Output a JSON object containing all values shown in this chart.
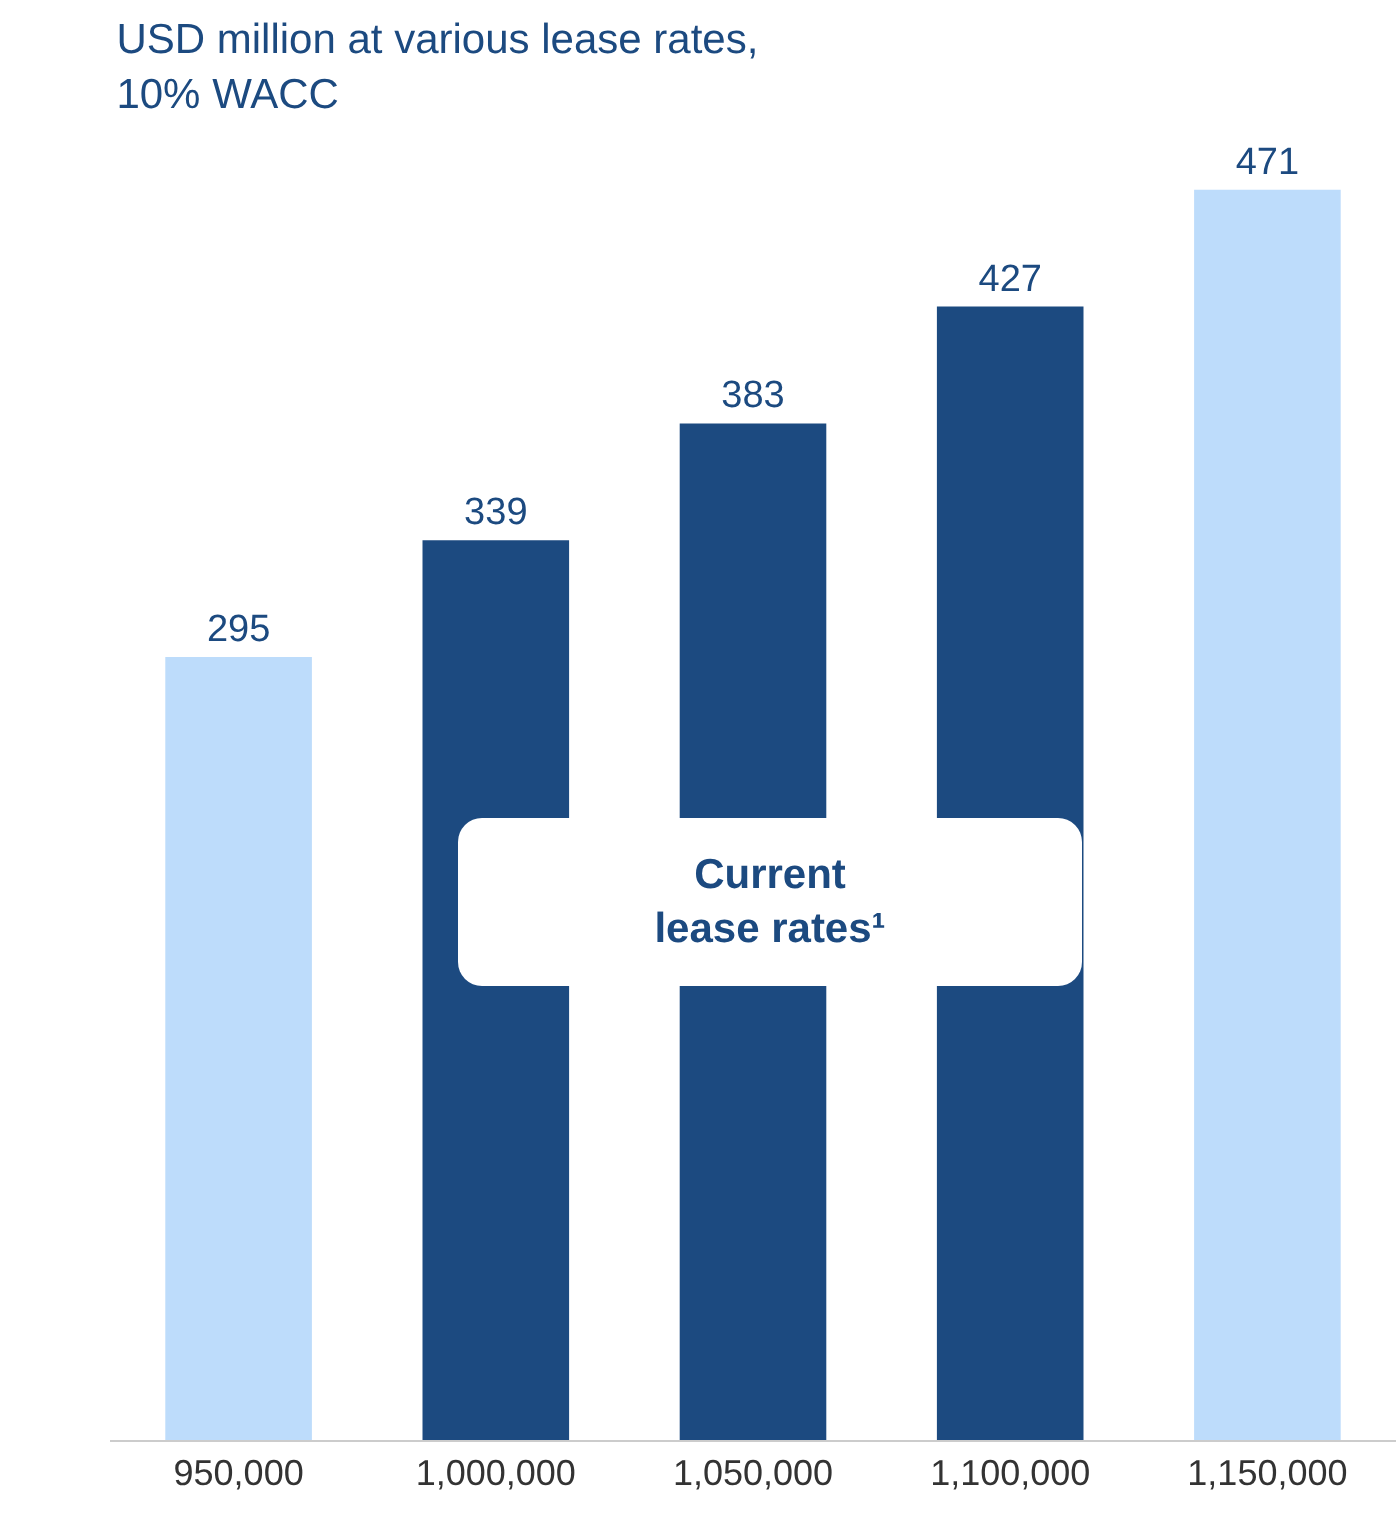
{
  "chart_data": {
    "type": "bar",
    "title": "USD million at various lease rates,\n10% WACC",
    "categories": [
      "950,000",
      "1,000,000",
      "1,050,000",
      "1,100,000",
      "1,150,000"
    ],
    "values": [
      295,
      339,
      383,
      427,
      471
    ],
    "colors": [
      "#bddcfb",
      "#1c4a80",
      "#1c4a80",
      "#1c4a80",
      "#bddcfb"
    ],
    "tick_labels": "x",
    "data_labels": true,
    "grid": false,
    "legend": false,
    "annotations": [
      "Current\nlease rates¹"
    ]
  }
}
